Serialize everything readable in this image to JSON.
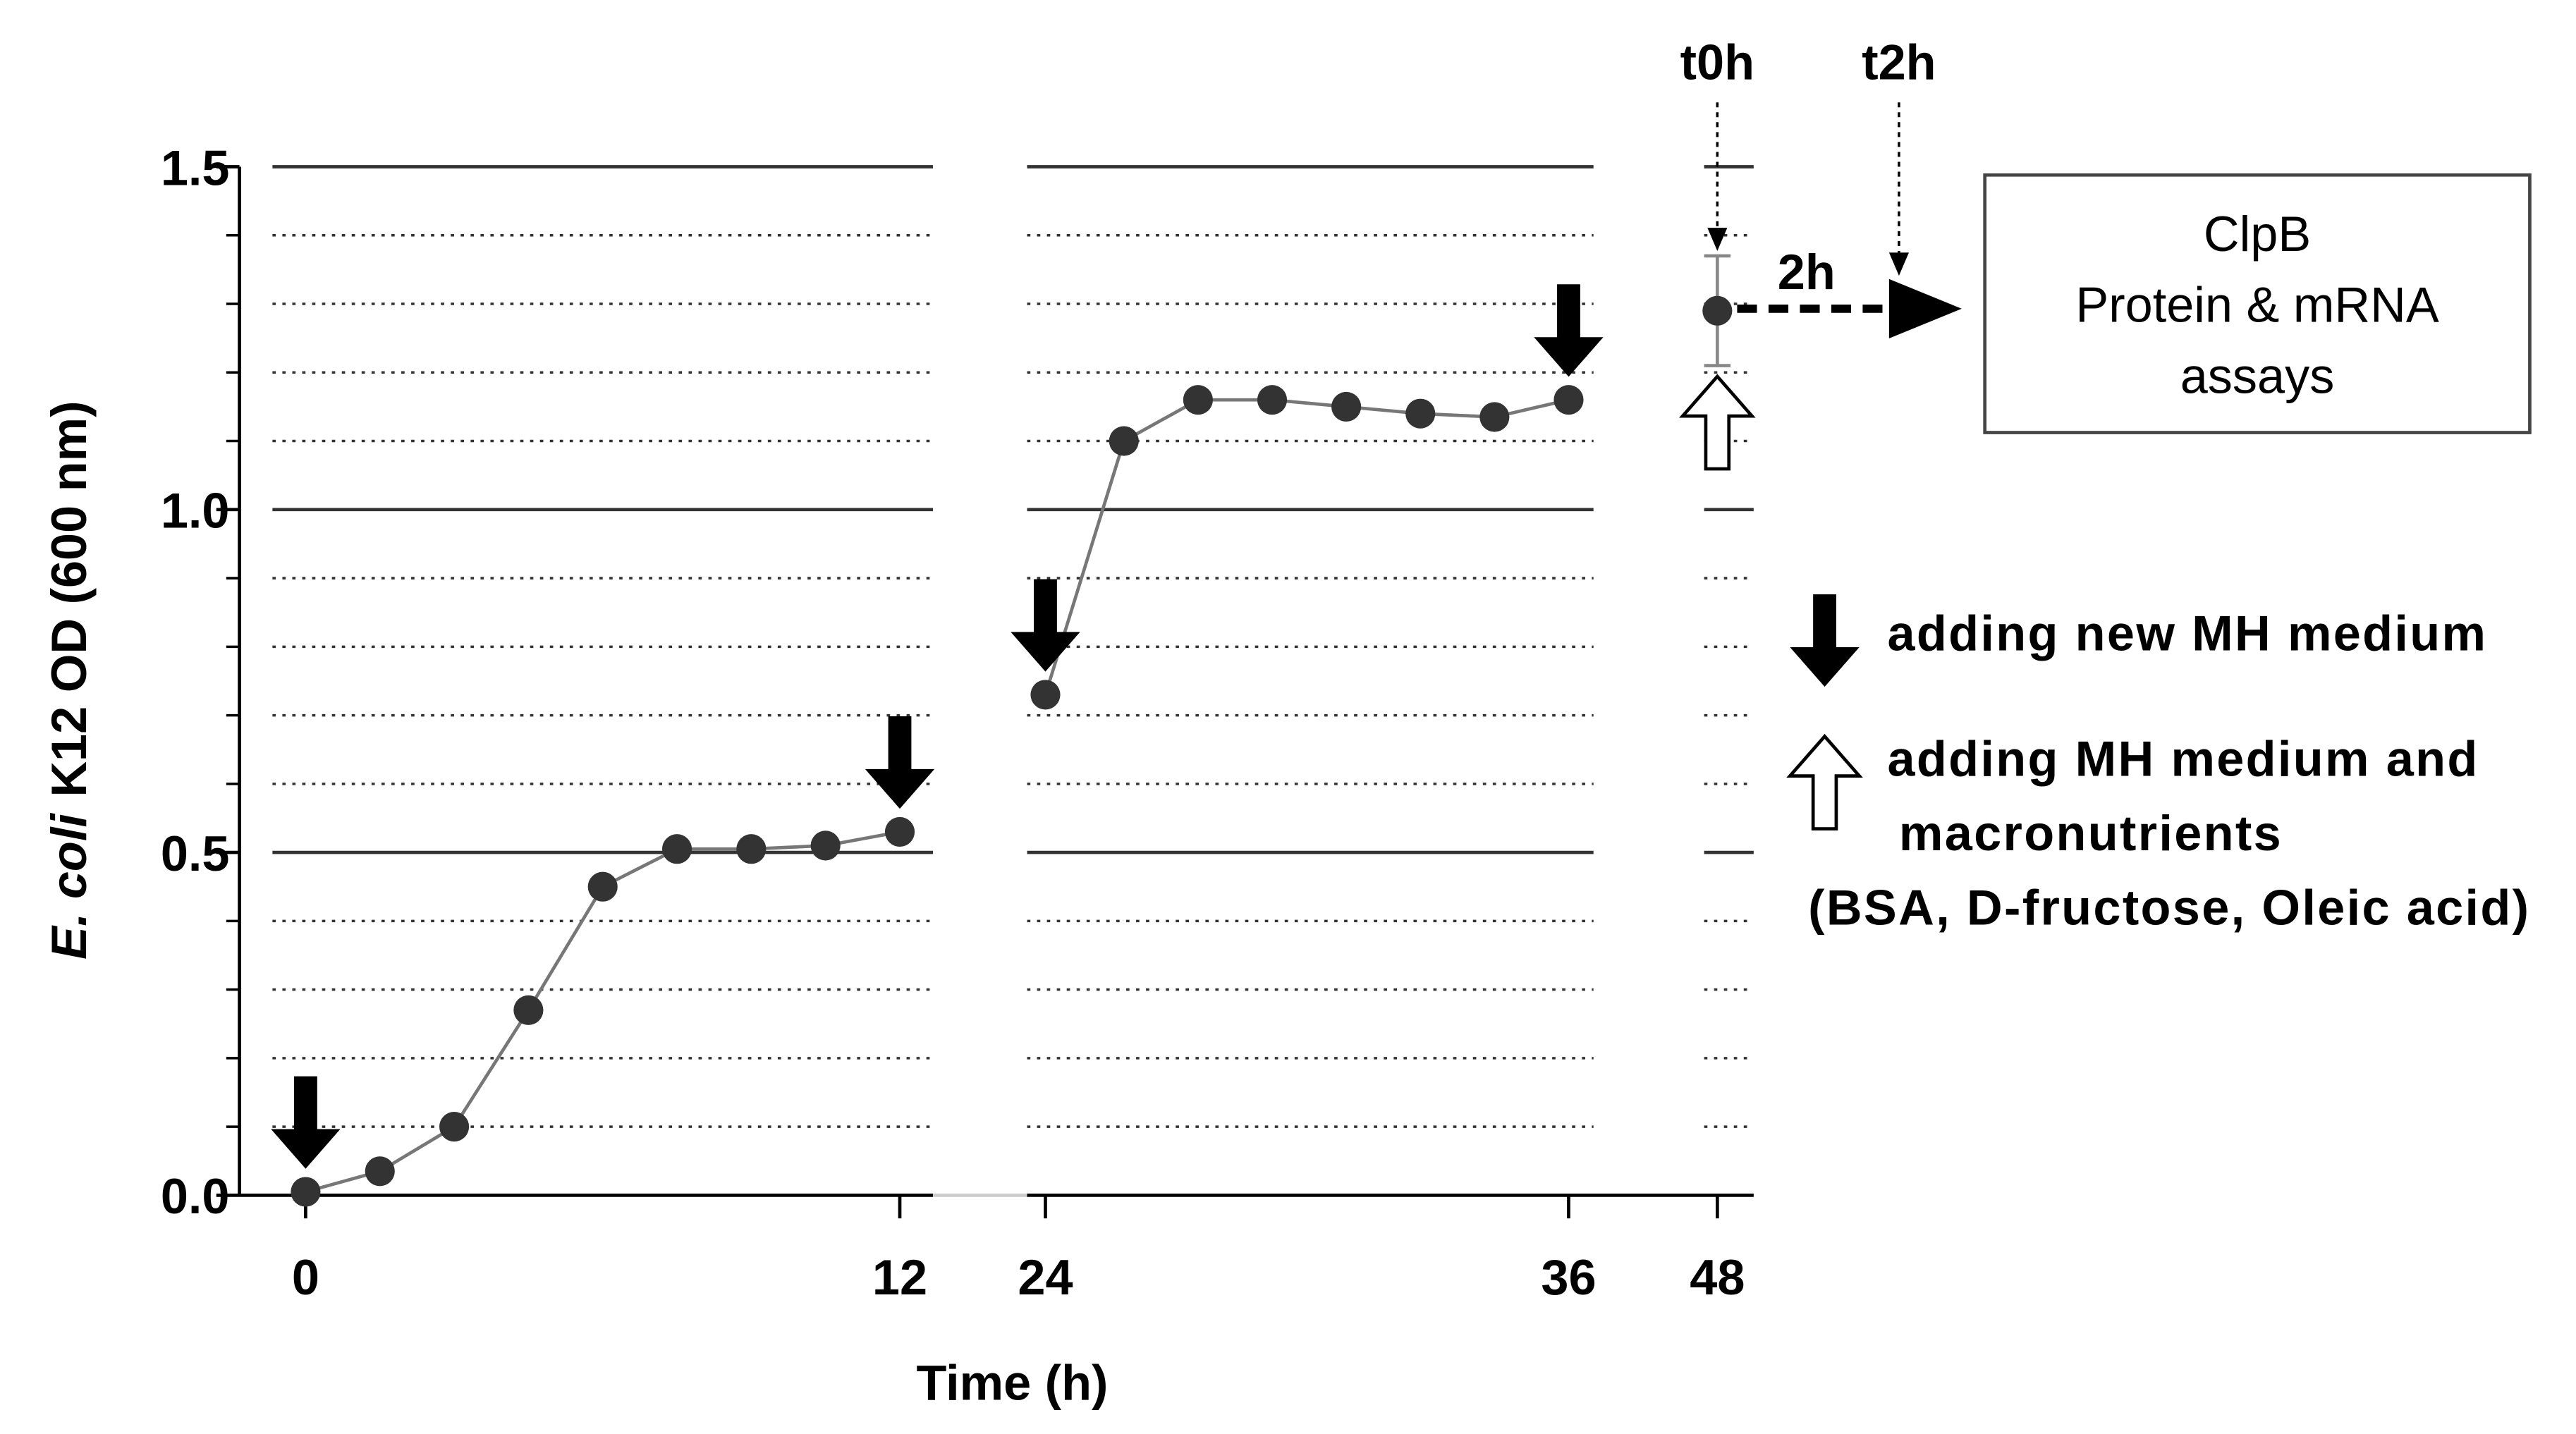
{
  "chart_data": {
    "type": "line",
    "xlabel": "Time (h)",
    "ylabel": [
      "E. coli",
      "K12 OD (600 nm)"
    ],
    "ylim": [
      0,
      1.5
    ],
    "yticks": [
      {
        "value": 0,
        "label": "0.0"
      },
      {
        "value": 0.5,
        "label": "0.5"
      },
      {
        "value": 1,
        "label": "1.0"
      },
      {
        "value": 1.5,
        "label": "1.5"
      }
    ],
    "minor_yticks": [
      0.1,
      0.2,
      0.3,
      0.4,
      0.6,
      0.7,
      0.8,
      0.9,
      1.1,
      1.2,
      1.3,
      1.4
    ],
    "line_color": "#777777",
    "marker_color": "#333333",
    "segments": [
      {
        "xlim": [
          -0.67,
          12.67
        ],
        "xticks": [
          0,
          12
        ],
        "x": [
          0,
          1.5,
          3,
          4.5,
          6,
          7.5,
          9,
          10.5,
          12
        ],
        "values": [
          0.005,
          0.035,
          0.1,
          0.27,
          0.45,
          0.505,
          0.505,
          0.51,
          0.53
        ]
      },
      {
        "xlim": [
          23.58,
          36.57
        ],
        "xticks": [
          24,
          36
        ],
        "x": [
          24,
          25.8,
          27.5,
          29.2,
          30.9,
          32.6,
          34.3,
          36
        ],
        "values": [
          0.73,
          1.1,
          1.16,
          1.16,
          1.15,
          1.14,
          1.135,
          1.16
        ]
      },
      {
        "xlim": [
          47.6,
          49.1
        ],
        "xticks": [
          48
        ],
        "x": [
          48
        ],
        "values": [
          1.29
        ],
        "errors": [
          0.08
        ]
      }
    ],
    "filled_arrow_x": [
      0,
      12,
      24,
      36
    ],
    "open_arrow_x": [
      48
    ],
    "annotations": {
      "t0": "t0h",
      "t2": "t2h",
      "gap": "2h"
    },
    "box_text": [
      "ClpB",
      "Protein & mRNA",
      "assays"
    ],
    "legend": [
      {
        "marker": "filled",
        "label": [
          "adding new MH medium"
        ]
      },
      {
        "marker": "open",
        "label": [
          "adding MH medium and",
          "macronutrients",
          "(BSA, D-fructose, Oleic acid)"
        ]
      }
    ]
  }
}
